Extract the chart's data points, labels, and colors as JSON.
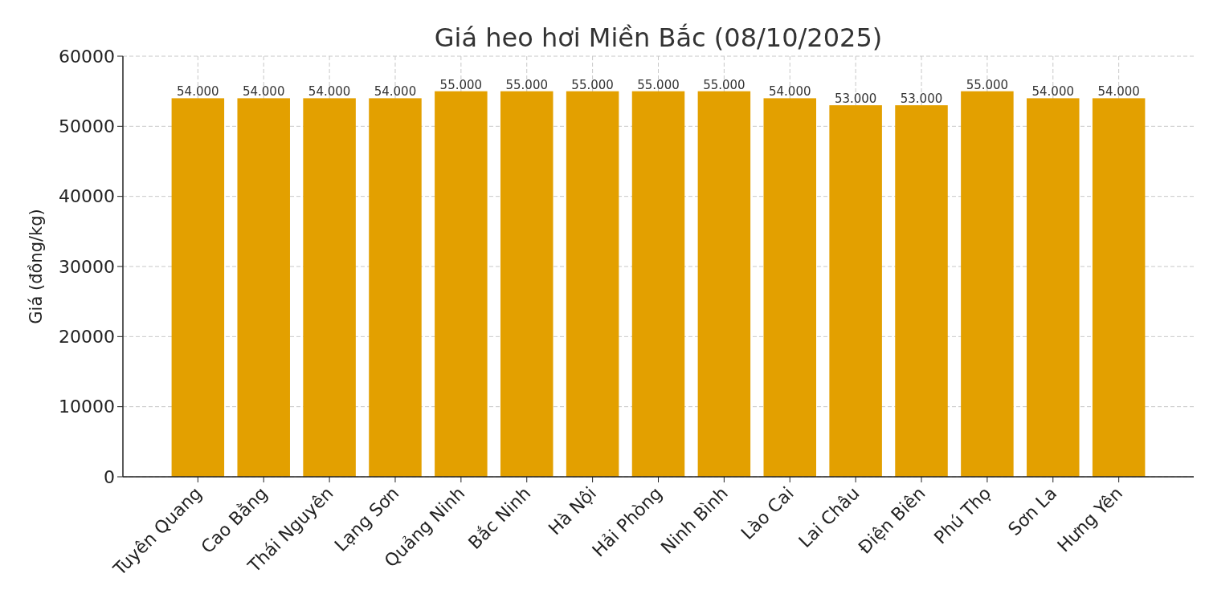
{
  "chart_data": {
    "type": "bar",
    "title": "Giá heo hơi Miền Bắc (08/10/2025)",
    "ylabel": "Giá (đồng/kg)",
    "categories": [
      "Tuyên Quang",
      "Cao Bằng",
      "Thái Nguyên",
      "Lạng Sơn",
      "Quảng Ninh",
      "Bắc Ninh",
      "Hà Nội",
      "Hải Phòng",
      "Ninh Bình",
      "Lào Cai",
      "Lai Châu",
      "Điện Biên",
      "Phú Thọ",
      "Sơn La",
      "Hưng Yên"
    ],
    "values": [
      54000,
      54000,
      54000,
      54000,
      55000,
      55000,
      55000,
      55000,
      55000,
      54000,
      53000,
      53000,
      55000,
      54000,
      54000
    ],
    "value_labels": [
      "54.000",
      "54.000",
      "54.000",
      "54.000",
      "55.000",
      "55.000",
      "55.000",
      "55.000",
      "55.000",
      "54.000",
      "53.000",
      "53.000",
      "55.000",
      "54.000",
      "54.000"
    ],
    "color": "#e3a000",
    "ylim": [
      0,
      60000
    ],
    "yticks": [
      0,
      10000,
      20000,
      30000,
      40000,
      50000,
      60000
    ],
    "grid": true
  }
}
